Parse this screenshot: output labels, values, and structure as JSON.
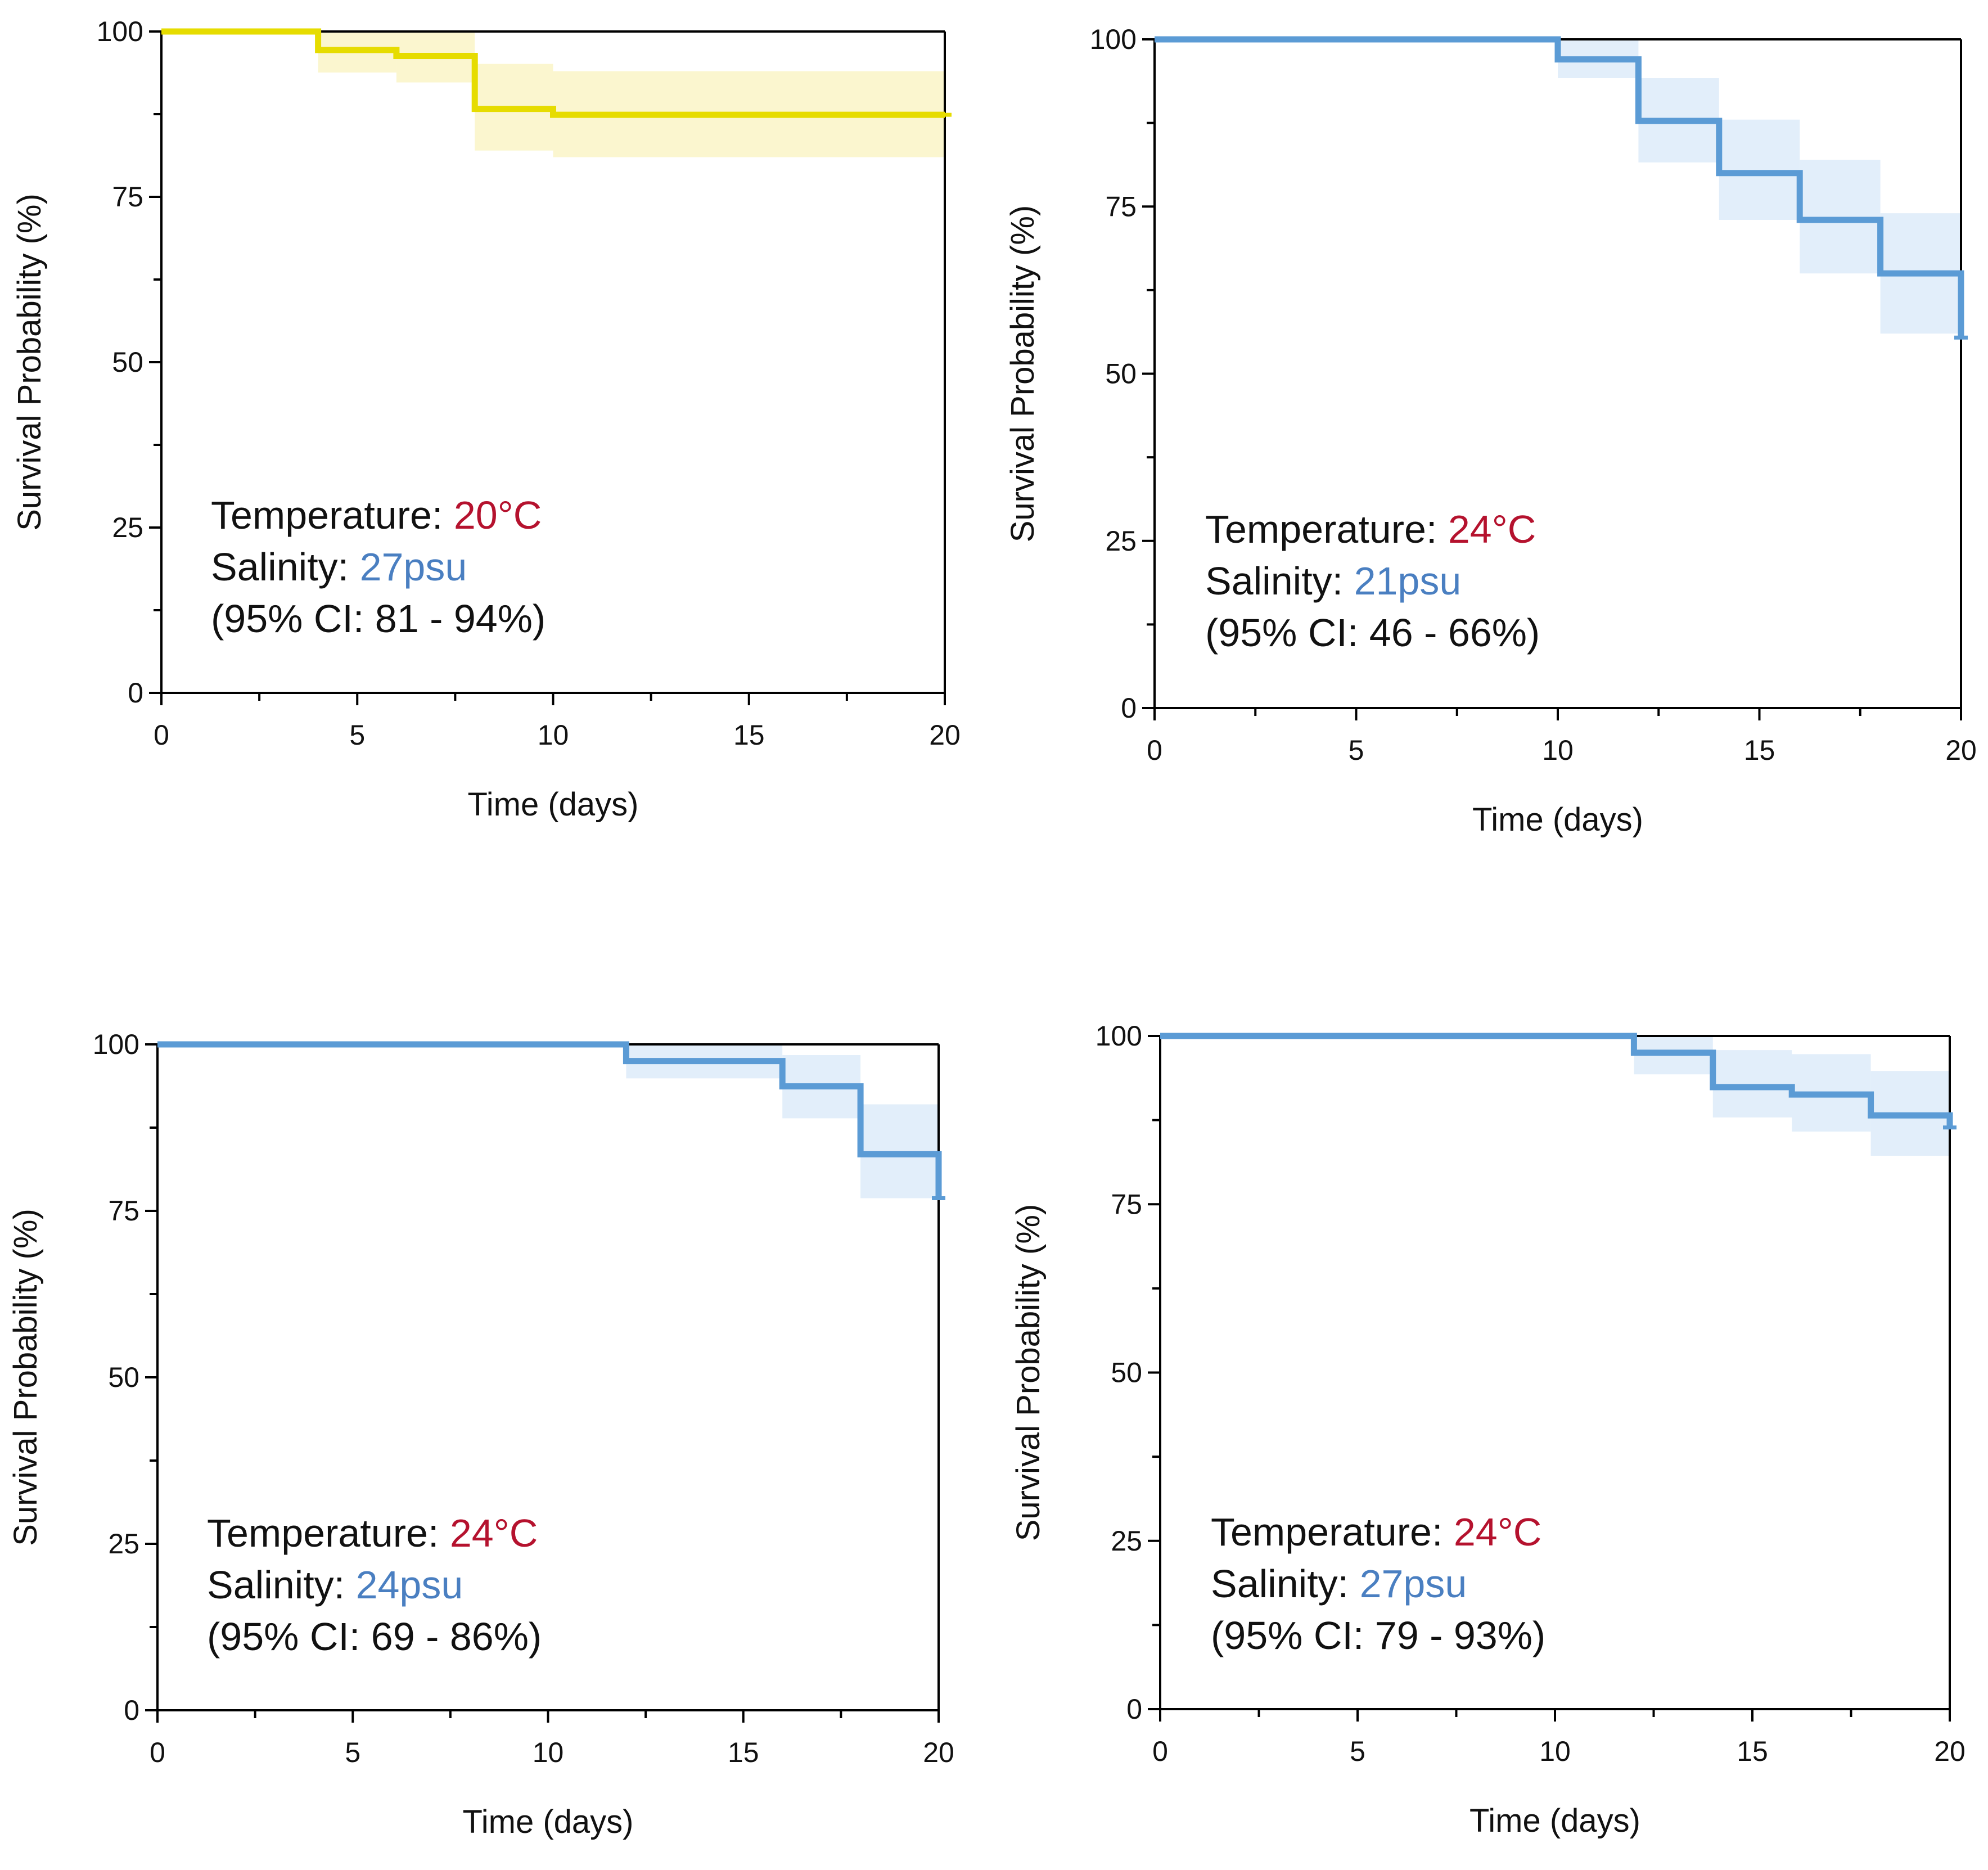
{
  "colors": {
    "temperature_value": "#b5122e",
    "salinity_value": "#4a7fc1",
    "axis": "#000000",
    "text": "#111111"
  },
  "chart_data": [
    {
      "type": "line",
      "subtype": "kaplan-meier step",
      "panel": "top-left",
      "xlabel": "Time (days)",
      "ylabel": "Survival Probability (%)",
      "xlim": [
        0,
        20
      ],
      "ylim": [
        0,
        100
      ],
      "xticks": [
        0,
        5,
        10,
        15,
        20
      ],
      "yticks": [
        0,
        25,
        50,
        75,
        100
      ],
      "grid": false,
      "line_color": "#e6dc00",
      "band_color": "#fbf6cf",
      "series": [
        {
          "name": "Survival",
          "x": [
            0,
            4,
            6,
            8,
            10,
            20
          ],
          "y": [
            100,
            97.2,
            96.3,
            88.3,
            87.4,
            87.4
          ]
        }
      ],
      "ci_bands": [
        {
          "x0": 4,
          "x1": 6,
          "lower": 93.8,
          "upper": 100
        },
        {
          "x0": 6,
          "x1": 8,
          "lower": 92.3,
          "upper": 100
        },
        {
          "x0": 8,
          "x1": 10,
          "lower": 82.0,
          "upper": 95.1
        },
        {
          "x0": 10,
          "x1": 20,
          "lower": 81.0,
          "upper": 94.0
        }
      ],
      "annotation": {
        "temperature_label": "Temperature: ",
        "temperature_value": "20°C",
        "salinity_label": "Salinity: ",
        "salinity_value": "27psu",
        "ci_text": "(95% CI: 81 - 94%)"
      }
    },
    {
      "type": "line",
      "subtype": "kaplan-meier step",
      "panel": "top-right",
      "xlabel": "Time (days)",
      "ylabel": "Survival Probability (%)",
      "xlim": [
        0,
        20
      ],
      "ylim": [
        0,
        100
      ],
      "xticks": [
        0,
        5,
        10,
        15,
        20
      ],
      "yticks": [
        0,
        25,
        50,
        75,
        100
      ],
      "grid": false,
      "line_color": "#5b9bd5",
      "band_color": "#e2eefa",
      "series": [
        {
          "name": "Survival",
          "x": [
            0,
            10,
            12,
            14,
            16,
            18,
            20
          ],
          "y": [
            100,
            97.0,
            87.8,
            80.0,
            73.0,
            65.0,
            55.4
          ]
        }
      ],
      "ci_bands": [
        {
          "x0": 10,
          "x1": 12,
          "lower": 94.2,
          "upper": 100
        },
        {
          "x0": 12,
          "x1": 14,
          "lower": 81.6,
          "upper": 94.2
        },
        {
          "x0": 14,
          "x1": 16,
          "lower": 73.0,
          "upper": 88.0
        },
        {
          "x0": 16,
          "x1": 18,
          "lower": 65.0,
          "upper": 82.0
        },
        {
          "x0": 18,
          "x1": 20,
          "lower": 56.0,
          "upper": 74.0
        }
      ],
      "annotation": {
        "temperature_label": "Temperature: ",
        "temperature_value": "24°C",
        "salinity_label": "Salinity: ",
        "salinity_value": "21psu",
        "ci_text": "(95% CI: 46 - 66%)"
      }
    },
    {
      "type": "line",
      "subtype": "kaplan-meier step",
      "panel": "bottom-left",
      "xlabel": "Time (days)",
      "ylabel": "Survival Probability (%)",
      "xlim": [
        0,
        20
      ],
      "ylim": [
        0,
        100
      ],
      "xticks": [
        0,
        5,
        10,
        15,
        20
      ],
      "yticks": [
        0,
        25,
        50,
        75,
        100
      ],
      "grid": false,
      "line_color": "#5b9bd5",
      "band_color": "#e2eefa",
      "series": [
        {
          "name": "Survival",
          "x": [
            0,
            12,
            16,
            18,
            20
          ],
          "y": [
            100,
            97.5,
            93.7,
            83.5,
            76.9
          ]
        }
      ],
      "ci_bands": [
        {
          "x0": 12,
          "x1": 16,
          "lower": 94.9,
          "upper": 100
        },
        {
          "x0": 16,
          "x1": 18,
          "lower": 88.9,
          "upper": 98.4
        },
        {
          "x0": 18,
          "x1": 20,
          "lower": 76.9,
          "upper": 91.0
        }
      ],
      "annotation": {
        "temperature_label": "Temperature: ",
        "temperature_value": "24°C",
        "salinity_label": "Salinity: ",
        "salinity_value": "24psu",
        "ci_text": "(95% CI: 69 - 86%)"
      }
    },
    {
      "type": "line",
      "subtype": "kaplan-meier step",
      "panel": "bottom-right",
      "xlabel": "Time (days)",
      "ylabel": "Survival Probability (%)",
      "xlim": [
        0,
        20
      ],
      "ylim": [
        0,
        100
      ],
      "xticks": [
        0,
        5,
        10,
        15,
        20
      ],
      "yticks": [
        0,
        25,
        50,
        75,
        100
      ],
      "grid": false,
      "line_color": "#5b9bd5",
      "band_color": "#e2eefa",
      "series": [
        {
          "name": "Survival",
          "x": [
            0,
            12,
            14,
            16,
            18,
            20
          ],
          "y": [
            100,
            97.5,
            92.4,
            91.3,
            88.2,
            86.4
          ]
        }
      ],
      "ci_bands": [
        {
          "x0": 12,
          "x1": 14,
          "lower": 94.3,
          "upper": 100
        },
        {
          "x0": 14,
          "x1": 16,
          "lower": 87.9,
          "upper": 97.9
        },
        {
          "x0": 16,
          "x1": 18,
          "lower": 85.8,
          "upper": 97.3
        },
        {
          "x0": 18,
          "x1": 20,
          "lower": 82.2,
          "upper": 94.8
        }
      ],
      "annotation": {
        "temperature_label": "Temperature: ",
        "temperature_value": "24°C",
        "salinity_label": "Salinity: ",
        "salinity_value": "27psu",
        "ci_text": "(95% CI: 79 - 93%)"
      }
    }
  ]
}
